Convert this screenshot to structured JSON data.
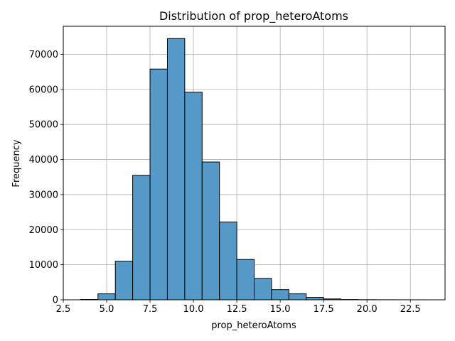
{
  "chart_data": {
    "type": "bar",
    "title": "Distribution of prop_heteroAtoms",
    "xlabel": "prop_heteroAtoms",
    "ylabel": "Frequency",
    "xlim": [
      2.5,
      24.5
    ],
    "ylim": [
      0,
      78000
    ],
    "xticks": [
      2.5,
      5.0,
      7.5,
      10.0,
      12.5,
      15.0,
      17.5,
      20.0,
      22.5
    ],
    "xtick_labels": [
      "2.5",
      "5.0",
      "7.5",
      "10.0",
      "12.5",
      "15.0",
      "17.5",
      "20.0",
      "22.5"
    ],
    "yticks": [
      0,
      10000,
      20000,
      30000,
      40000,
      50000,
      60000,
      70000
    ],
    "ytick_labels": [
      "0",
      "10000",
      "20000",
      "30000",
      "40000",
      "50000",
      "60000",
      "70000"
    ],
    "grid": true,
    "bar_color": "#5499c7",
    "edge_color": "#000000",
    "bins": [
      {
        "x0": 3.5,
        "x1": 4.5,
        "value": 100
      },
      {
        "x0": 4.5,
        "x1": 5.5,
        "value": 1700
      },
      {
        "x0": 5.5,
        "x1": 6.5,
        "value": 11000
      },
      {
        "x0": 6.5,
        "x1": 7.5,
        "value": 35500
      },
      {
        "x0": 7.5,
        "x1": 8.5,
        "value": 65800
      },
      {
        "x0": 8.5,
        "x1": 9.5,
        "value": 74500
      },
      {
        "x0": 9.5,
        "x1": 10.5,
        "value": 59200
      },
      {
        "x0": 10.5,
        "x1": 11.5,
        "value": 39300
      },
      {
        "x0": 11.5,
        "x1": 12.5,
        "value": 22200
      },
      {
        "x0": 12.5,
        "x1": 13.5,
        "value": 11500
      },
      {
        "x0": 13.5,
        "x1": 14.5,
        "value": 6100
      },
      {
        "x0": 14.5,
        "x1": 15.5,
        "value": 2900
      },
      {
        "x0": 15.5,
        "x1": 16.5,
        "value": 1700
      },
      {
        "x0": 16.5,
        "x1": 17.5,
        "value": 700
      },
      {
        "x0": 17.5,
        "x1": 18.5,
        "value": 250
      },
      {
        "x0": 18.5,
        "x1": 19.5,
        "value": 80
      },
      {
        "x0": 19.5,
        "x1": 20.5,
        "value": 40
      },
      {
        "x0": 20.5,
        "x1": 21.5,
        "value": 20
      },
      {
        "x0": 21.5,
        "x1": 22.5,
        "value": 10
      },
      {
        "x0": 22.5,
        "x1": 23.5,
        "value": 5
      }
    ]
  }
}
